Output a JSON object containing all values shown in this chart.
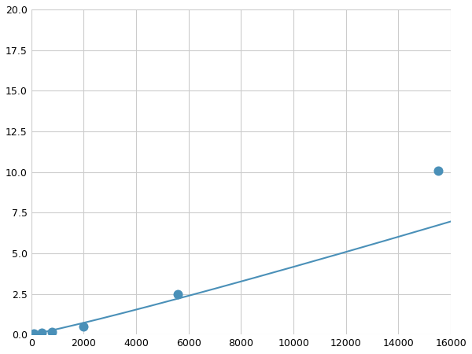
{
  "x": [
    100,
    400,
    800,
    2000,
    5600,
    15500
  ],
  "y": [
    0.05,
    0.1,
    0.15,
    0.5,
    2.5,
    10.1
  ],
  "line_color": "#4a90b8",
  "marker_color": "#4a90b8",
  "marker_size": 5,
  "xlim": [
    0,
    16000
  ],
  "ylim": [
    0,
    20.0
  ],
  "xticks": [
    0,
    2000,
    4000,
    6000,
    8000,
    10000,
    12000,
    14000,
    16000
  ],
  "yticks": [
    0.0,
    2.5,
    5.0,
    7.5,
    10.0,
    12.5,
    15.0,
    17.5,
    20.0
  ],
  "grid": true,
  "background_color": "#ffffff",
  "line_width": 1.5
}
